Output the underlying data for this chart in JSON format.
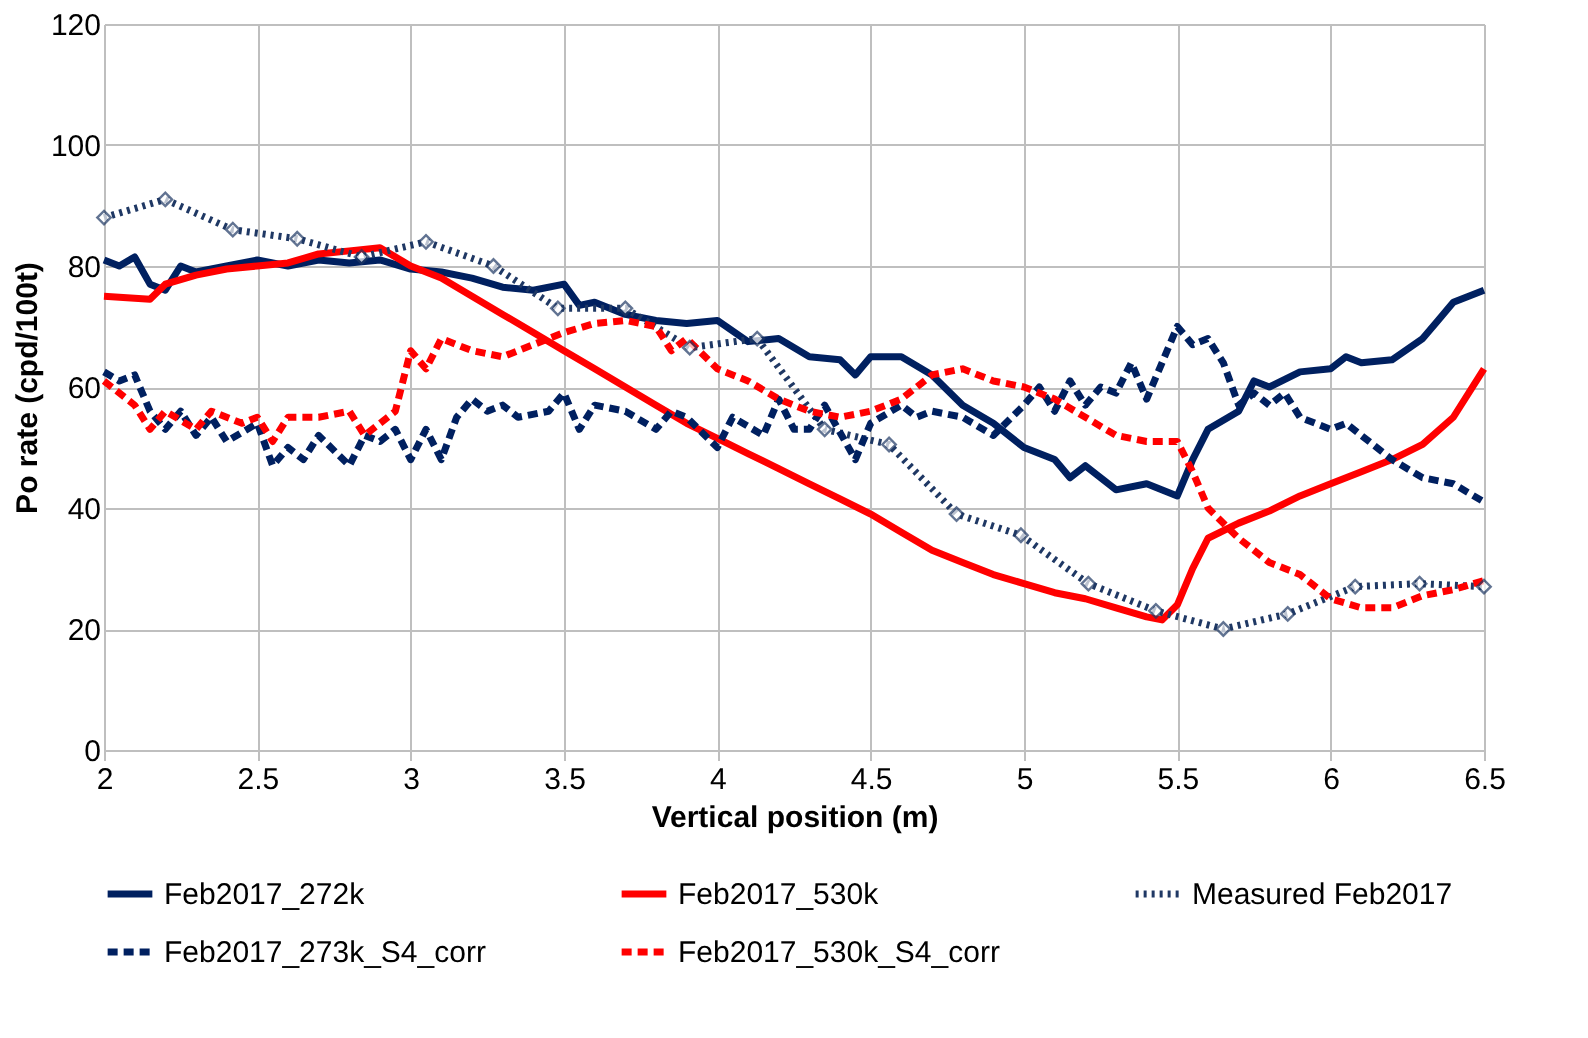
{
  "chart_data": {
    "type": "line",
    "xlabel": "Vertical position (m)",
    "ylabel": "Po rate (cpd/100t)",
    "xlim": [
      2,
      6.5
    ],
    "ylim": [
      0,
      120
    ],
    "xticks": [
      2,
      2.5,
      3,
      3.5,
      4,
      4.5,
      5,
      5.5,
      6,
      6.5
    ],
    "yticks": [
      0,
      20,
      40,
      60,
      80,
      100,
      120
    ],
    "grid": true,
    "legend": "bottom",
    "series": [
      {
        "name": "Feb2017_272k",
        "color": "#002060",
        "line_style": "solid",
        "marker": "none",
        "x": [
          2.0,
          2.05,
          2.1,
          2.15,
          2.2,
          2.25,
          2.3,
          2.4,
          2.5,
          2.6,
          2.7,
          2.8,
          2.9,
          3.0,
          3.1,
          3.2,
          3.3,
          3.4,
          3.5,
          3.55,
          3.6,
          3.7,
          3.8,
          3.9,
          4.0,
          4.1,
          4.2,
          4.3,
          4.4,
          4.45,
          4.5,
          4.6,
          4.7,
          4.8,
          4.9,
          5.0,
          5.1,
          5.15,
          5.2,
          5.3,
          5.4,
          5.5,
          5.55,
          5.6,
          5.7,
          5.75,
          5.8,
          5.9,
          6.0,
          6.05,
          6.1,
          6.2,
          6.3,
          6.35,
          6.4,
          6.5
        ],
        "values": [
          81,
          80,
          81.5,
          77,
          76,
          80,
          79,
          80,
          81,
          80,
          81,
          80.5,
          81,
          79.5,
          79,
          78,
          76.5,
          76,
          77,
          73.5,
          74,
          72,
          71,
          70.5,
          71,
          67.5,
          68,
          65,
          64.5,
          62,
          65,
          65,
          62,
          57,
          54,
          50,
          48,
          45,
          47,
          43,
          44,
          42,
          48,
          53,
          56,
          61,
          60,
          62.5,
          63,
          65,
          64,
          64.5,
          68,
          71,
          74,
          76
        ]
      },
      {
        "name": "Feb2017_530k",
        "color": "#ff0000",
        "line_style": "solid",
        "marker": "none",
        "x": [
          2.0,
          2.15,
          2.2,
          2.3,
          2.4,
          2.5,
          2.6,
          2.7,
          2.8,
          2.9,
          3.0,
          3.1,
          3.2,
          3.3,
          3.4,
          3.5,
          3.6,
          3.7,
          3.8,
          3.9,
          4.0,
          4.1,
          4.2,
          4.3,
          4.4,
          4.5,
          4.6,
          4.7,
          4.8,
          4.9,
          5.0,
          5.1,
          5.2,
          5.3,
          5.4,
          5.45,
          5.5,
          5.55,
          5.6,
          5.7,
          5.8,
          5.9,
          6.0,
          6.1,
          6.2,
          6.3,
          6.4,
          6.5
        ],
        "values": [
          75,
          74.5,
          77,
          78.5,
          79.5,
          80,
          80.5,
          82,
          82.5,
          83,
          80,
          78,
          75,
          72,
          69,
          66,
          63,
          60,
          57,
          54,
          51.5,
          49,
          46.5,
          44,
          41.5,
          39,
          36,
          33,
          31,
          29,
          27.5,
          26,
          25,
          23.5,
          22,
          21.5,
          24,
          30,
          35,
          37.5,
          39.5,
          42,
          44,
          46,
          48,
          50.5,
          55,
          63
        ]
      },
      {
        "name": "Measured Feb2017",
        "color": "#1f3864",
        "line_style": "dotted",
        "marker": "diamond",
        "x": [
          2.0,
          2.2,
          2.42,
          2.63,
          2.84,
          3.05,
          3.27,
          3.48,
          3.7,
          3.91,
          4.13,
          4.35,
          4.56,
          4.78,
          4.99,
          5.21,
          5.43,
          5.65,
          5.86,
          6.08,
          6.29,
          6.5
        ],
        "values": [
          88,
          91,
          86,
          84.5,
          81.5,
          84,
          80,
          73,
          73,
          66.5,
          68,
          53,
          50.5,
          39,
          35.5,
          27.5,
          23,
          20,
          22.5,
          27,
          27.5,
          27
        ]
      },
      {
        "name": "Feb2017_273k_S4_corr",
        "color": "#002060",
        "line_style": "dashed",
        "marker": "none",
        "x": [
          2.0,
          2.05,
          2.1,
          2.15,
          2.2,
          2.25,
          2.3,
          2.35,
          2.4,
          2.5,
          2.55,
          2.6,
          2.65,
          2.7,
          2.8,
          2.85,
          2.9,
          2.95,
          3.0,
          3.05,
          3.1,
          3.15,
          3.2,
          3.25,
          3.3,
          3.35,
          3.45,
          3.5,
          3.55,
          3.6,
          3.7,
          3.8,
          3.85,
          3.9,
          4.0,
          4.05,
          4.15,
          4.2,
          4.25,
          4.3,
          4.35,
          4.45,
          4.5,
          4.6,
          4.65,
          4.7,
          4.8,
          4.9,
          5.0,
          5.05,
          5.1,
          5.15,
          5.2,
          5.25,
          5.3,
          5.35,
          5.4,
          5.45,
          5.5,
          5.55,
          5.6,
          5.65,
          5.7,
          5.75,
          5.8,
          5.85,
          5.9,
          6.0,
          6.05,
          6.1,
          6.2,
          6.3,
          6.4,
          6.5
        ],
        "values": [
          62.5,
          61,
          62,
          56,
          53,
          56,
          52,
          55,
          51,
          54,
          47,
          50,
          48,
          52,
          47,
          52,
          51,
          53,
          48,
          53,
          48,
          55,
          58,
          56,
          57,
          55,
          56,
          59,
          53,
          57,
          56,
          53,
          56,
          55,
          50,
          55,
          52,
          58,
          53,
          53,
          57,
          48,
          54,
          57,
          55,
          56,
          55,
          52,
          57,
          60,
          56,
          61,
          57,
          60,
          59,
          64,
          58,
          64,
          70,
          67,
          68,
          64,
          57,
          59,
          57,
          59,
          55,
          53,
          54,
          52,
          48,
          45,
          44,
          41
        ]
      },
      {
        "name": "Feb2017_530k_S4_corr",
        "color": "#ff0000",
        "line_style": "dashed",
        "marker": "none",
        "x": [
          2.0,
          2.1,
          2.15,
          2.2,
          2.3,
          2.35,
          2.45,
          2.5,
          2.55,
          2.6,
          2.7,
          2.8,
          2.85,
          2.9,
          2.95,
          3.0,
          3.05,
          3.1,
          3.2,
          3.3,
          3.4,
          3.5,
          3.6,
          3.7,
          3.8,
          3.85,
          3.9,
          4.0,
          4.1,
          4.2,
          4.3,
          4.4,
          4.5,
          4.6,
          4.7,
          4.8,
          4.9,
          5.0,
          5.1,
          5.2,
          5.3,
          5.4,
          5.5,
          5.55,
          5.6,
          5.7,
          5.8,
          5.9,
          6.0,
          6.1,
          6.2,
          6.3,
          6.4,
          6.5
        ],
        "values": [
          61,
          57,
          53,
          56,
          53,
          56,
          54,
          55,
          51,
          55,
          55,
          56,
          52,
          54,
          56,
          66,
          63,
          68,
          66,
          65,
          67,
          69,
          70.5,
          71,
          70,
          66,
          68,
          63,
          61,
          58,
          56,
          55,
          56,
          58,
          62,
          63,
          61,
          60,
          58,
          55,
          52,
          51,
          51,
          46,
          40,
          35,
          31,
          29,
          25,
          23.5,
          23.5,
          25.5,
          26.5,
          28
        ]
      }
    ]
  }
}
